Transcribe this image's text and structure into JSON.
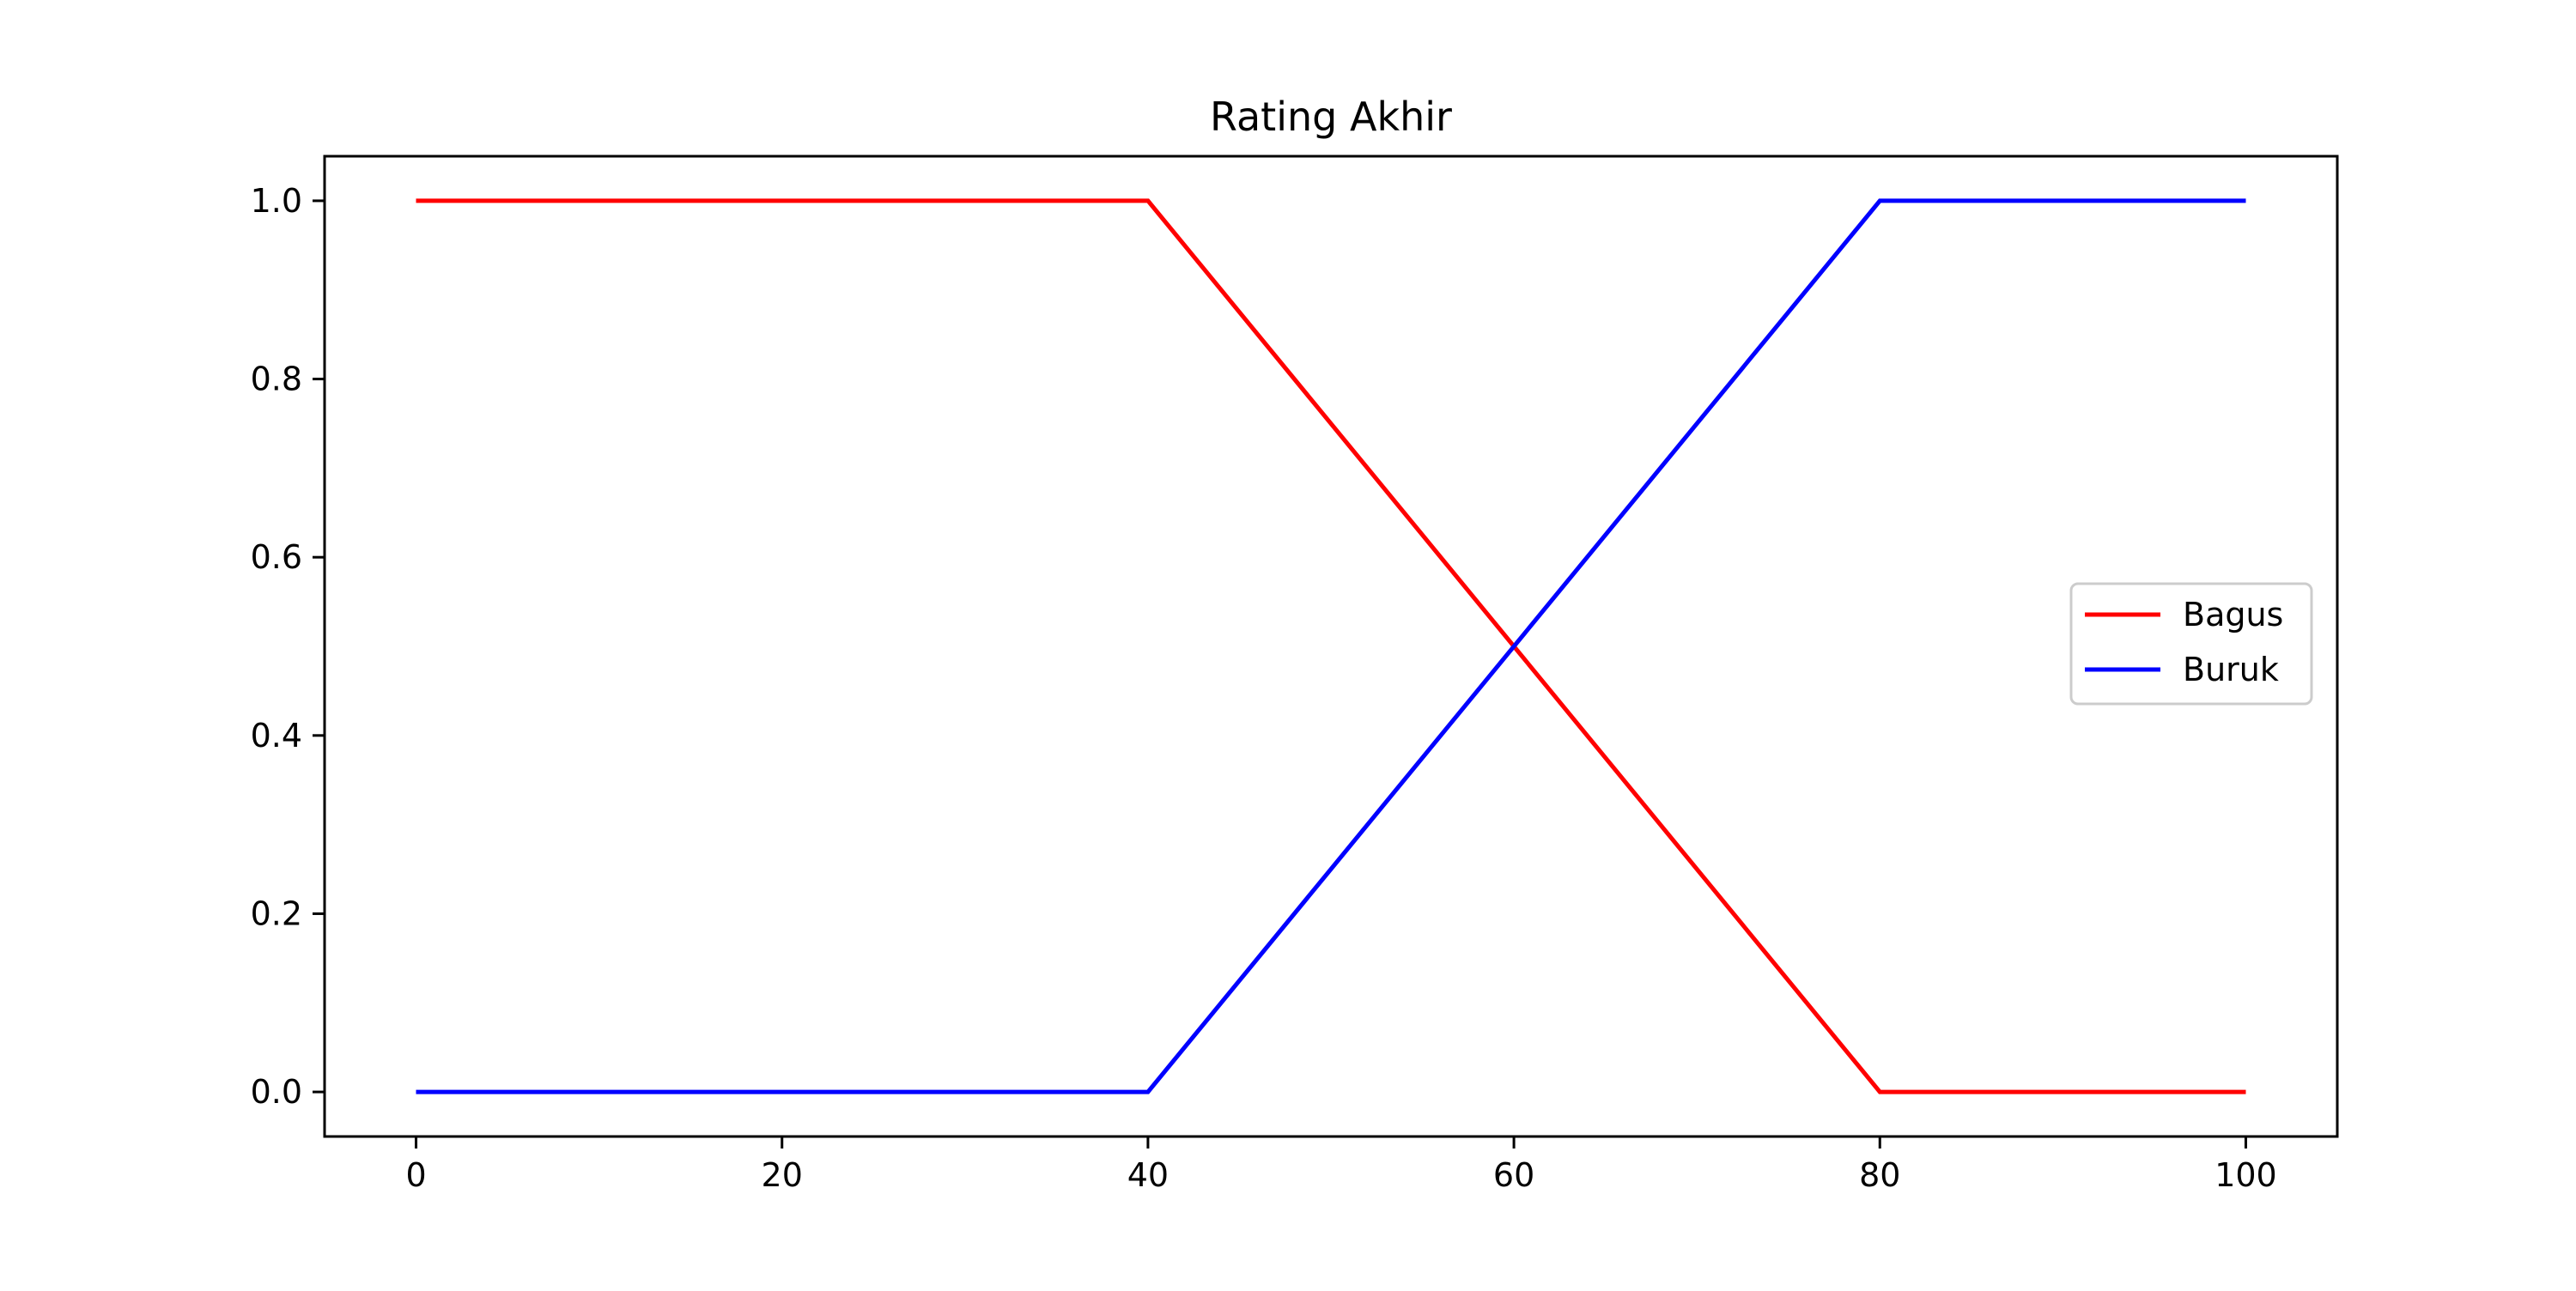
{
  "chart_data": {
    "type": "line",
    "title": "Rating Akhir",
    "xlabel": "",
    "ylabel": "",
    "xlim": [
      -5,
      105
    ],
    "ylim": [
      -0.05,
      1.05
    ],
    "xticks": [
      0,
      20,
      40,
      60,
      80,
      100
    ],
    "yticks": [
      0.0,
      0.2,
      0.4,
      0.6,
      0.8,
      1.0
    ],
    "xtick_labels": [
      "0",
      "20",
      "40",
      "60",
      "80",
      "100"
    ],
    "ytick_labels": [
      "0.0",
      "0.2",
      "0.4",
      "0.6",
      "0.8",
      "1.0"
    ],
    "grid": false,
    "legend_position": "center-right",
    "series": [
      {
        "name": "Bagus",
        "color": "#ff0000",
        "x": [
          0,
          40,
          80,
          100
        ],
        "y": [
          1.0,
          1.0,
          0.0,
          0.0
        ]
      },
      {
        "name": "Buruk",
        "color": "#0000ff",
        "x": [
          0,
          40,
          80,
          100
        ],
        "y": [
          0.0,
          0.0,
          1.0,
          1.0
        ]
      }
    ]
  }
}
